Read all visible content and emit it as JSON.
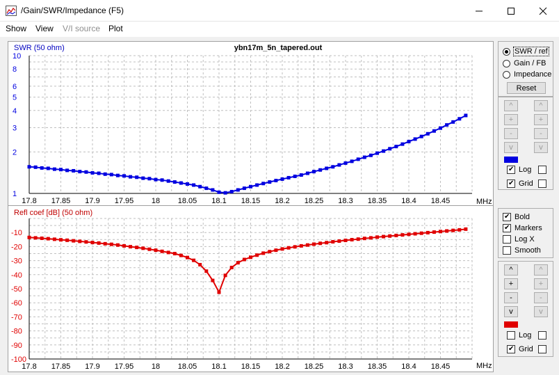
{
  "window": {
    "title": "/Gain/SWR/Impedance (F5)",
    "icons": [
      "chart-app-icon",
      "minimize-icon",
      "maximize-icon",
      "close-icon"
    ]
  },
  "menu": {
    "items": [
      "Show",
      "View",
      "V/I source",
      "Plot"
    ]
  },
  "colors": {
    "swr": "#0000e0",
    "refl": "#e00000",
    "grid": "#bfbfbf"
  },
  "swr_panel": {
    "ylabel": "SWR (50 ohm)",
    "title": "ybn17m_5n_tapered.out",
    "xunit": "MHz",
    "ticks_x": [
      "17.8",
      "17.85",
      "17.9",
      "17.95",
      "18",
      "18.05",
      "18.1",
      "18.15",
      "18.2",
      "18.25",
      "18.3",
      "18.35",
      "18.4",
      "18.45"
    ],
    "ticks_y": [
      "10",
      "8",
      "6",
      "5",
      "4",
      "3",
      "2",
      "1"
    ]
  },
  "refl_panel": {
    "ylabel": "Refl coef [dB] (50 ohm)",
    "xunit": "MHz",
    "ticks_x": [
      "17.8",
      "17.85",
      "17.9",
      "17.95",
      "18",
      "18.05",
      "18.1",
      "18.15",
      "18.2",
      "18.25",
      "18.3",
      "18.35",
      "18.4",
      "18.45"
    ],
    "ticks_y": [
      "-10",
      "-20",
      "-30",
      "-40",
      "-50",
      "-60",
      "-70",
      "-80",
      "-90",
      "-100"
    ]
  },
  "controls_top": {
    "radios": [
      "SWR / ref",
      "Gain / FB",
      "Impedance"
    ],
    "selected": 0,
    "reset": "Reset",
    "arrows": [
      "^",
      "+",
      "-",
      "v"
    ],
    "log_label": "Log",
    "grid_label": "Grid",
    "log_checked": true,
    "grid_checked": true
  },
  "options": {
    "bold": "Bold",
    "markers": "Markers",
    "logx": "Log X",
    "smooth": "Smooth",
    "bold_checked": true,
    "markers_checked": true,
    "logx_checked": false,
    "smooth_checked": false
  },
  "controls_bottom": {
    "arrows": [
      "^",
      "+",
      "-",
      "v"
    ],
    "log_label": "Log",
    "grid_label": "Grid",
    "log_checked": false,
    "grid_checked": true
  },
  "chart_data": [
    {
      "type": "line",
      "ylabel": "SWR (50 ohm)",
      "title": "ybn17m_5n_tapered.out",
      "xlabel": "MHz",
      "xlim": [
        17.8,
        18.5
      ],
      "ylim": [
        1,
        10
      ],
      "yscale": "log",
      "grid": true,
      "series": [
        {
          "x": [
            17.8,
            17.81,
            17.82,
            17.83,
            17.84,
            17.85,
            17.86,
            17.87,
            17.88,
            17.89,
            17.9,
            17.91,
            17.92,
            17.93,
            17.94,
            17.95,
            17.96,
            17.97,
            17.98,
            17.99,
            18.0,
            18.01,
            18.02,
            18.03,
            18.04,
            18.05,
            18.06,
            18.07,
            18.08,
            18.09,
            18.1,
            18.11,
            18.12,
            18.13,
            18.14,
            18.15,
            18.16,
            18.17,
            18.18,
            18.19,
            18.2,
            18.21,
            18.22,
            18.23,
            18.24,
            18.25,
            18.26,
            18.27,
            18.28,
            18.29,
            18.3,
            18.31,
            18.32,
            18.33,
            18.34,
            18.35,
            18.36,
            18.37,
            18.38,
            18.39,
            18.4,
            18.41,
            18.42,
            18.43,
            18.44,
            18.45,
            18.46,
            18.47,
            18.48,
            18.49
          ],
          "values": [
            1.56,
            1.55,
            1.53,
            1.52,
            1.5,
            1.49,
            1.47,
            1.46,
            1.44,
            1.43,
            1.41,
            1.4,
            1.38,
            1.37,
            1.35,
            1.34,
            1.32,
            1.31,
            1.29,
            1.28,
            1.26,
            1.25,
            1.23,
            1.21,
            1.19,
            1.17,
            1.15,
            1.12,
            1.09,
            1.06,
            1.02,
            1.01,
            1.03,
            1.06,
            1.09,
            1.12,
            1.15,
            1.18,
            1.21,
            1.24,
            1.27,
            1.3,
            1.33,
            1.36,
            1.4,
            1.44,
            1.48,
            1.52,
            1.56,
            1.61,
            1.66,
            1.71,
            1.77,
            1.83,
            1.89,
            1.96,
            2.03,
            2.11,
            2.19,
            2.28,
            2.38,
            2.48,
            2.59,
            2.71,
            2.84,
            2.98,
            3.14,
            3.3,
            3.48,
            3.68
          ]
        }
      ]
    },
    {
      "type": "line",
      "ylabel": "Refl coef [dB] (50 ohm)",
      "xlabel": "MHz",
      "xlim": [
        17.8,
        18.5
      ],
      "ylim": [
        -100,
        0
      ],
      "grid": true,
      "series": [
        {
          "x": [
            17.8,
            17.81,
            17.82,
            17.83,
            17.84,
            17.85,
            17.86,
            17.87,
            17.88,
            17.89,
            17.9,
            17.91,
            17.92,
            17.93,
            17.94,
            17.95,
            17.96,
            17.97,
            17.98,
            17.99,
            18.0,
            18.01,
            18.02,
            18.03,
            18.04,
            18.05,
            18.06,
            18.07,
            18.08,
            18.09,
            18.1,
            18.11,
            18.12,
            18.13,
            18.14,
            18.15,
            18.16,
            18.17,
            18.18,
            18.19,
            18.2,
            18.21,
            18.22,
            18.23,
            18.24,
            18.25,
            18.26,
            18.27,
            18.28,
            18.29,
            18.3,
            18.31,
            18.32,
            18.33,
            18.34,
            18.35,
            18.36,
            18.37,
            18.38,
            18.39,
            18.4,
            18.41,
            18.42,
            18.43,
            18.44,
            18.45,
            18.46,
            18.47,
            18.48,
            18.49
          ],
          "values": [
            -13.5,
            -13.8,
            -14.1,
            -14.4,
            -14.8,
            -15.2,
            -15.5,
            -15.9,
            -16.3,
            -16.7,
            -17.1,
            -17.5,
            -18.0,
            -18.4,
            -18.9,
            -19.5,
            -20.1,
            -20.6,
            -21.2,
            -21.9,
            -22.6,
            -23.4,
            -24.2,
            -25.0,
            -26.3,
            -27.8,
            -29.8,
            -32.9,
            -37.5,
            -44.1,
            -52.5,
            -40.5,
            -34.9,
            -31.5,
            -29.2,
            -27.6,
            -26.1,
            -24.7,
            -23.6,
            -22.6,
            -21.7,
            -20.9,
            -20.2,
            -19.5,
            -18.9,
            -18.3,
            -17.7,
            -17.2,
            -16.6,
            -16.1,
            -15.6,
            -15.1,
            -14.7,
            -14.2,
            -13.8,
            -13.3,
            -12.9,
            -12.5,
            -12.1,
            -11.7,
            -11.3,
            -10.9,
            -10.5,
            -10.1,
            -9.7,
            -9.3,
            -8.9,
            -8.5,
            -8.1,
            -7.6
          ]
        }
      ]
    }
  ]
}
